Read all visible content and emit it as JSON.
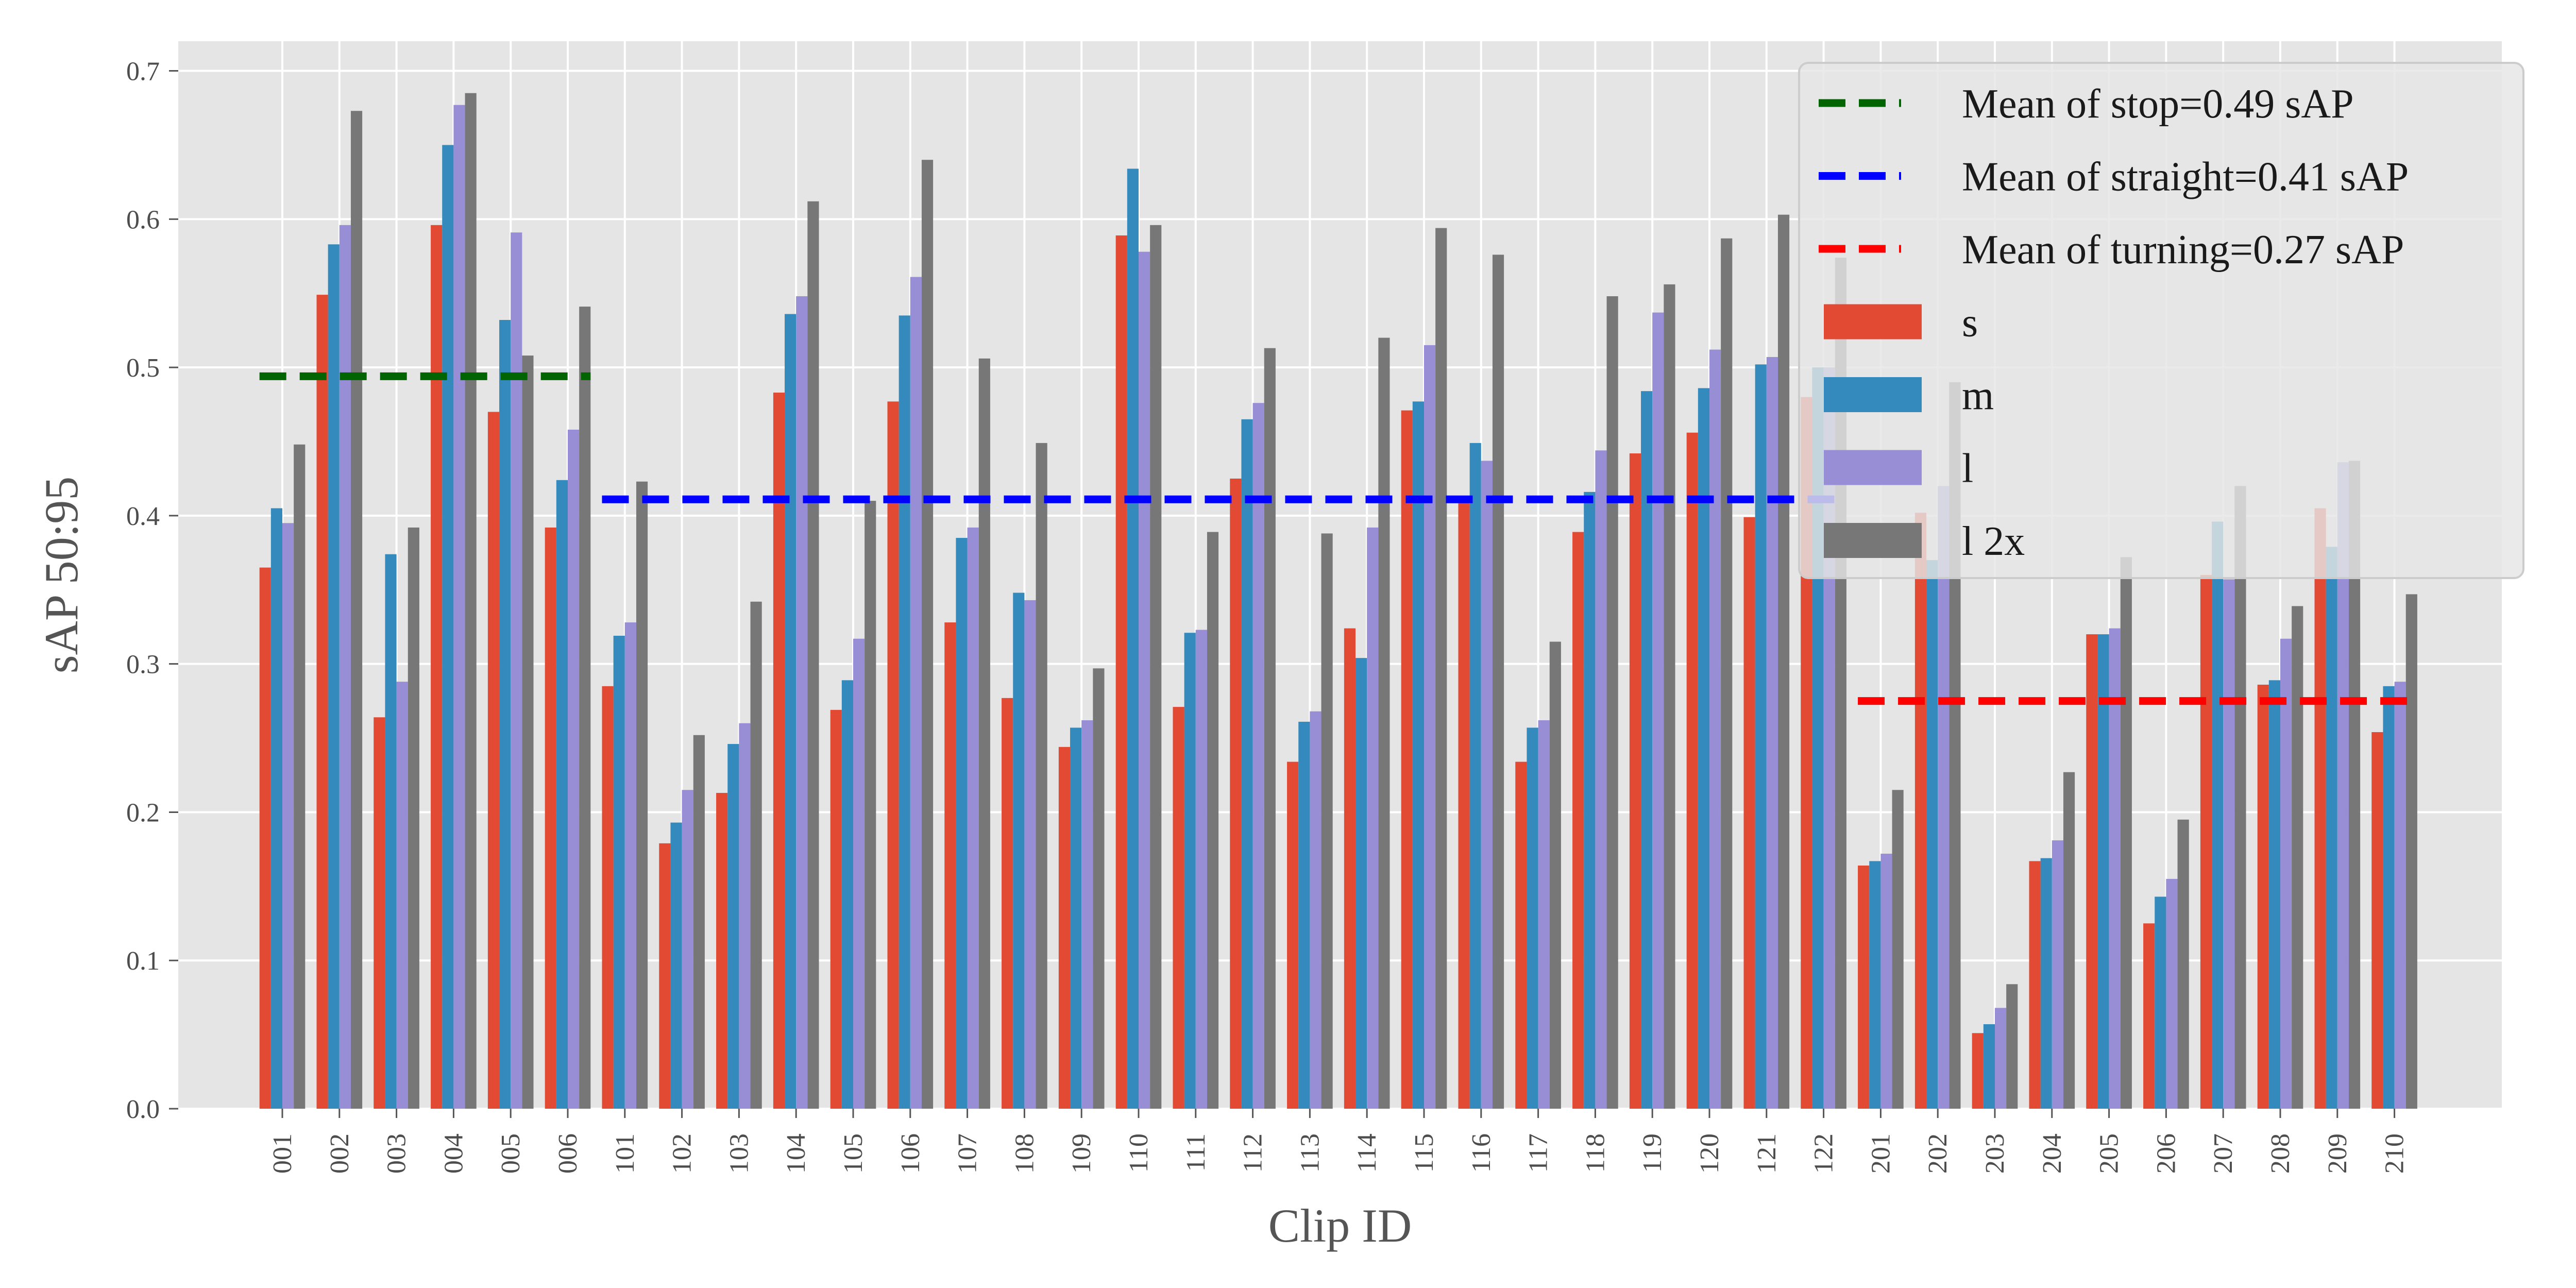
{
  "chart_data": {
    "type": "bar",
    "xlabel": "Clip ID",
    "ylabel": "sAP 50:95",
    "ylim": [
      0,
      0.72
    ],
    "yticks": [
      "0.0",
      "0.1",
      "0.2",
      "0.3",
      "0.4",
      "0.5",
      "0.6",
      "0.7"
    ],
    "grid": true,
    "legend_position": "top-right",
    "categories": [
      "001",
      "002",
      "003",
      "004",
      "005",
      "006",
      "101",
      "102",
      "103",
      "104",
      "105",
      "106",
      "107",
      "108",
      "109",
      "110",
      "111",
      "112",
      "113",
      "114",
      "115",
      "116",
      "117",
      "118",
      "119",
      "120",
      "121",
      "122",
      "201",
      "202",
      "203",
      "204",
      "205",
      "206",
      "207",
      "208",
      "209",
      "210"
    ],
    "series": [
      {
        "name": "s",
        "color": "#E24A33",
        "values": [
          0.365,
          0.549,
          0.264,
          0.596,
          0.47,
          0.392,
          0.285,
          0.179,
          0.213,
          0.483,
          0.269,
          0.477,
          0.328,
          0.277,
          0.244,
          0.589,
          0.271,
          0.425,
          0.234,
          0.324,
          0.471,
          0.409,
          0.234,
          0.389,
          0.442,
          0.456,
          0.399,
          0.48,
          0.164,
          0.402,
          0.051,
          0.167,
          0.32,
          0.125,
          0.36,
          0.286,
          0.405,
          0.254
        ]
      },
      {
        "name": "m",
        "color": "#348ABD",
        "values": [
          0.405,
          0.583,
          0.374,
          0.65,
          0.532,
          0.424,
          0.319,
          0.193,
          0.246,
          0.536,
          0.289,
          0.535,
          0.385,
          0.348,
          0.257,
          0.634,
          0.321,
          0.465,
          0.261,
          0.304,
          0.477,
          0.449,
          0.257,
          0.416,
          0.484,
          0.486,
          0.502,
          0.5,
          0.167,
          0.37,
          0.057,
          0.169,
          0.32,
          0.143,
          0.396,
          0.289,
          0.379,
          0.285
        ]
      },
      {
        "name": "l",
        "color": "#988ED5",
        "values": [
          0.395,
          0.596,
          0.288,
          0.677,
          0.591,
          0.458,
          0.328,
          0.215,
          0.26,
          0.548,
          0.317,
          0.561,
          0.392,
          0.343,
          0.262,
          0.578,
          0.323,
          0.476,
          0.268,
          0.392,
          0.515,
          0.437,
          0.262,
          0.444,
          0.537,
          0.512,
          0.507,
          0.5,
          0.172,
          0.42,
          0.068,
          0.181,
          0.324,
          0.155,
          0.357,
          0.317,
          0.436,
          0.288
        ]
      },
      {
        "name": "l 2x",
        "color": "#777777",
        "values": [
          0.448,
          0.673,
          0.392,
          0.685,
          0.508,
          0.541,
          0.423,
          0.252,
          0.342,
          0.612,
          0.41,
          0.64,
          0.506,
          0.449,
          0.297,
          0.596,
          0.389,
          0.513,
          0.388,
          0.52,
          0.594,
          0.576,
          0.315,
          0.548,
          0.556,
          0.587,
          0.603,
          0.574,
          0.215,
          0.49,
          0.084,
          0.227,
          0.372,
          0.195,
          0.42,
          0.339,
          0.437,
          0.347
        ]
      }
    ],
    "mean_lines": [
      {
        "label": "Mean of stop=0.49 sAP",
        "value": 0.494,
        "from_category": "001",
        "to_category": "006",
        "color": "#006400"
      },
      {
        "label": "Mean of straight=0.41 sAP",
        "value": 0.411,
        "from_category": "101",
        "to_category": "122",
        "color": "#0000FF"
      },
      {
        "label": "Mean of turning=0.27 sAP",
        "value": 0.275,
        "from_category": "201",
        "to_category": "210",
        "color": "#FF0000"
      }
    ],
    "background_color": "#E5E5E5",
    "grid_color": "#FFFFFF"
  }
}
